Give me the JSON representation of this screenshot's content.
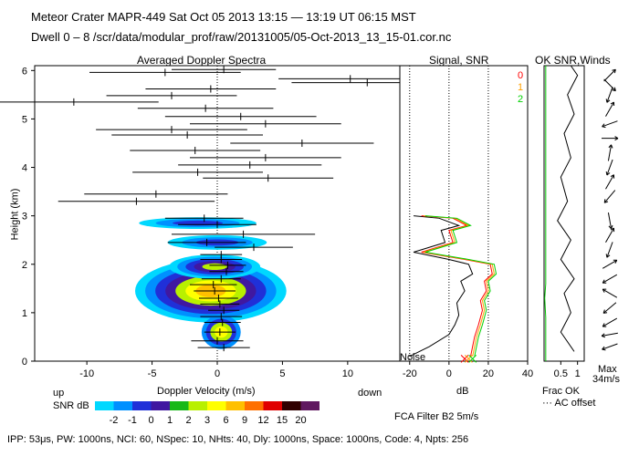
{
  "header": {
    "line1": "Meteor Crater   MAPR-449   Sat Oct 05 2013 13:15 — 13:19 UT 06:15 MST",
    "line2": "Dwell  0 –  8   /scr/data/modular_prof/raw/20131005/05-Oct-2013_13_15-01.cor.nc"
  },
  "chart_data": [
    {
      "type": "heatmap",
      "title": "Averaged Doppler Spectra",
      "xlabel": "Doppler Velocity (m/s)",
      "ylabel": "Height (km)",
      "xlim": [
        -14,
        14
      ],
      "ylim": [
        0,
        6.1
      ],
      "x_ticks": [
        -10,
        -5,
        0,
        5,
        10
      ],
      "y_ticks": [
        0,
        1,
        2,
        3,
        4,
        5,
        6
      ],
      "direction_left": "up",
      "direction_right": "down",
      "colorbar": {
        "title": "SNR dB",
        "levels": [
          -2,
          -1,
          0,
          1,
          2,
          3,
          6,
          9,
          12,
          15,
          20
        ],
        "colors": [
          "#00d8ff",
          "#0090ff",
          "#2030d8",
          "#4018a0",
          "#18b818",
          "#b8f000",
          "#ffff00",
          "#ffc000",
          "#ff7000",
          "#e00000",
          "#300000",
          "#601860"
        ]
      },
      "spectra_bars": [
        {
          "h": 5.96,
          "v": -4.0,
          "w": 5.8
        },
        {
          "h": 6.02,
          "v": 0.5,
          "w": 4.0
        },
        {
          "h": 5.83,
          "v": 10.2,
          "w": 5.5
        },
        {
          "h": 5.75,
          "v": 11.5,
          "w": 5.8
        },
        {
          "h": 5.62,
          "v": -0.5,
          "w": 5.0
        },
        {
          "h": 5.48,
          "v": -3.5,
          "w": 5.0
        },
        {
          "h": 5.35,
          "v": -11.0,
          "w": 6.5
        },
        {
          "h": 5.22,
          "v": -0.9,
          "w": 5.2
        },
        {
          "h": 5.05,
          "v": 1.8,
          "w": 5.8
        },
        {
          "h": 4.9,
          "v": 3.7,
          "w": 5.8
        },
        {
          "h": 4.78,
          "v": -3.5,
          "w": 5.8
        },
        {
          "h": 4.67,
          "v": -2.3,
          "w": 5.8
        },
        {
          "h": 4.5,
          "v": 6.5,
          "w": 5.5
        },
        {
          "h": 4.35,
          "v": -1.7,
          "w": 5.0
        },
        {
          "h": 4.2,
          "v": 3.7,
          "w": 5.8
        },
        {
          "h": 4.05,
          "v": 2.5,
          "w": 5.5
        },
        {
          "h": 3.9,
          "v": -1.5,
          "w": 5.0
        },
        {
          "h": 3.78,
          "v": 3.9,
          "w": 5.0
        },
        {
          "h": 3.45,
          "v": -4.7,
          "w": 5.5
        },
        {
          "h": 3.3,
          "v": -6.2,
          "w": 6.0
        },
        {
          "h": 2.95,
          "v": -1.0,
          "w": 3.0
        },
        {
          "h": 2.82,
          "v": 0.0,
          "w": 3.0
        },
        {
          "h": 2.62,
          "v": 2.0,
          "w": 5.5
        },
        {
          "h": 2.45,
          "v": -0.8,
          "w": 3.0
        },
        {
          "h": 2.35,
          "v": 2.8,
          "w": 3.0
        },
        {
          "h": 2.2,
          "v": 0.3,
          "w": 1.6
        },
        {
          "h": 2.1,
          "v": 0.3,
          "w": 1.6
        },
        {
          "h": 1.98,
          "v": 0.8,
          "w": 1.4
        },
        {
          "h": 1.85,
          "v": 0.7,
          "w": 1.3
        },
        {
          "h": 1.7,
          "v": 0.3,
          "w": 1.5
        },
        {
          "h": 1.58,
          "v": -0.3,
          "w": 1.8
        },
        {
          "h": 1.45,
          "v": -0.2,
          "w": 1.6
        },
        {
          "h": 1.3,
          "v": 0.1,
          "w": 1.5
        },
        {
          "h": 1.18,
          "v": 0.2,
          "w": 1.5
        },
        {
          "h": 1.05,
          "v": 0.5,
          "w": 1.2
        },
        {
          "h": 0.92,
          "v": 0.3,
          "w": 1.6
        },
        {
          "h": 0.8,
          "v": 0.4,
          "w": 1.4
        },
        {
          "h": 0.6,
          "v": 0.2,
          "w": 1.2
        },
        {
          "h": 0.42,
          "v": 0.0,
          "w": 2.0
        },
        {
          "h": 0.28,
          "v": 0.5,
          "w": 2.0
        }
      ]
    },
    {
      "type": "line",
      "title": "Signal, SNR",
      "xlabel": "dB",
      "xlim": [
        -25,
        40
      ],
      "ylim": [
        0,
        6.1
      ],
      "x_ticks": [
        -20,
        0,
        20,
        40
      ],
      "noise_label": "Noise",
      "series": [
        {
          "name": "signal",
          "color": "#000000",
          "points": [
            [
              -20,
              0.1
            ],
            [
              -10,
              0.3
            ],
            [
              0,
              0.55
            ],
            [
              3,
              0.75
            ],
            [
              5,
              0.95
            ],
            [
              4,
              1.2
            ],
            [
              8,
              1.45
            ],
            [
              6,
              1.65
            ],
            [
              12,
              1.8
            ],
            [
              10,
              2.0
            ],
            [
              0,
              2.1
            ],
            [
              -18,
              2.25
            ],
            [
              -2,
              2.45
            ],
            [
              -4,
              2.7
            ],
            [
              5,
              2.8
            ],
            [
              -5,
              2.95
            ],
            [
              -18,
              3.0
            ]
          ]
        },
        {
          "name": "snr-0",
          "color": "#ff0000",
          "points": [
            [
              11,
              0.1
            ],
            [
              13,
              0.5
            ],
            [
              15,
              0.75
            ],
            [
              17,
              1.05
            ],
            [
              16,
              1.25
            ],
            [
              19,
              1.45
            ],
            [
              18,
              1.65
            ],
            [
              22,
              1.8
            ],
            [
              21,
              2.0
            ],
            [
              8,
              2.1
            ],
            [
              -14,
              2.25
            ],
            [
              2,
              2.45
            ],
            [
              0,
              2.7
            ],
            [
              9,
              2.8
            ],
            [
              2,
              2.95
            ],
            [
              -14,
              3.0
            ]
          ]
        },
        {
          "name": "snr-1",
          "color": "#ffa000",
          "points": [
            [
              12,
              0.1
            ],
            [
              14,
              0.5
            ],
            [
              16,
              0.75
            ],
            [
              18,
              1.05
            ],
            [
              17,
              1.25
            ],
            [
              20,
              1.45
            ],
            [
              19,
              1.65
            ],
            [
              23,
              1.8
            ],
            [
              22,
              2.0
            ],
            [
              9,
              2.1
            ],
            [
              -13,
              2.25
            ],
            [
              3,
              2.45
            ],
            [
              1,
              2.7
            ],
            [
              10,
              2.8
            ],
            [
              3,
              2.95
            ],
            [
              -13,
              3.0
            ]
          ]
        },
        {
          "name": "snr-2",
          "color": "#00d000",
          "points": [
            [
              13,
              0.1
            ],
            [
              15,
              0.5
            ],
            [
              17,
              0.75
            ],
            [
              19,
              1.05
            ],
            [
              18,
              1.25
            ],
            [
              21,
              1.45
            ],
            [
              20,
              1.65
            ],
            [
              24,
              1.8
            ],
            [
              23,
              2.0
            ],
            [
              10,
              2.1
            ],
            [
              -12,
              2.25
            ],
            [
              4,
              2.45
            ],
            [
              2,
              2.7
            ],
            [
              11,
              2.8
            ],
            [
              4,
              2.95
            ],
            [
              -12,
              3.0
            ]
          ]
        }
      ],
      "legend": [
        {
          "label": "0",
          "color": "#ff0000"
        },
        {
          "label": "1",
          "color": "#ffa000"
        },
        {
          "label": "2",
          "color": "#00d000"
        }
      ]
    },
    {
      "type": "line",
      "title": "OK SNR,Winds",
      "xlabel": "Frac OK",
      "x_ticks": [
        0.5,
        1
      ],
      "x_tick_labels": [
        "0.5",
        "1"
      ],
      "xlim": [
        0,
        1.2
      ],
      "ylim": [
        0,
        6.1
      ],
      "footnote": "··· AC offset",
      "max_wind_label": "Max",
      "max_wind_value": "34m/s",
      "series": [
        {
          "name": "frac-ok",
          "color": "#00c000",
          "points": [
            [
              0.05,
              0.0
            ],
            [
              0.05,
              0.9
            ],
            [
              0.02,
              1.3
            ],
            [
              0.05,
              1.6
            ],
            [
              0.05,
              2.8
            ],
            [
              0.05,
              6.1
            ]
          ]
        },
        {
          "name": "snr-profile",
          "color": "#000000",
          "points": [
            [
              0.9,
              0.2
            ],
            [
              0.5,
              0.6
            ],
            [
              0.8,
              1.0
            ],
            [
              0.6,
              1.4
            ],
            [
              0.9,
              1.7
            ],
            [
              0.5,
              2.1
            ],
            [
              0.8,
              2.5
            ],
            [
              0.4,
              2.9
            ],
            [
              0.7,
              3.3
            ],
            [
              0.5,
              3.8
            ],
            [
              0.8,
              4.2
            ],
            [
              0.6,
              4.7
            ],
            [
              0.9,
              5.1
            ],
            [
              0.7,
              5.5
            ],
            [
              1.0,
              5.9
            ],
            [
              0.8,
              6.1
            ]
          ]
        }
      ],
      "wind_barbs": [
        {
          "h": 5.9,
          "dir": 45
        },
        {
          "h": 5.7,
          "dir": 135
        },
        {
          "h": 5.5,
          "dir": 200
        },
        {
          "h": 5.2,
          "dir": 30
        },
        {
          "h": 4.9,
          "dir": 250
        },
        {
          "h": 4.6,
          "dir": 90
        },
        {
          "h": 4.3,
          "dir": 10
        },
        {
          "h": 4.0,
          "dir": 200
        },
        {
          "h": 3.7,
          "dir": 30
        },
        {
          "h": 3.4,
          "dir": 220
        },
        {
          "h": 2.9,
          "dir": 170
        },
        {
          "h": 2.6,
          "dir": 30
        },
        {
          "h": 2.3,
          "dir": 200
        },
        {
          "h": 2.0,
          "dir": 60
        },
        {
          "h": 1.7,
          "dir": 240
        },
        {
          "h": 1.4,
          "dir": 300
        },
        {
          "h": 1.1,
          "dir": 230
        },
        {
          "h": 0.8,
          "dir": 240
        },
        {
          "h": 0.55,
          "dir": 260
        },
        {
          "h": 0.3,
          "dir": 250
        }
      ]
    }
  ],
  "bottom": {
    "filter_label": "FCA Filter B2  5m/s",
    "params": "IPP:  53μs,  PW: 1000ns,  NCI:  60,  NSpec: 10,  NHts: 40,  Dly: 1000ns,  Space: 1000ns,  Code: 4,  Npts: 256"
  }
}
